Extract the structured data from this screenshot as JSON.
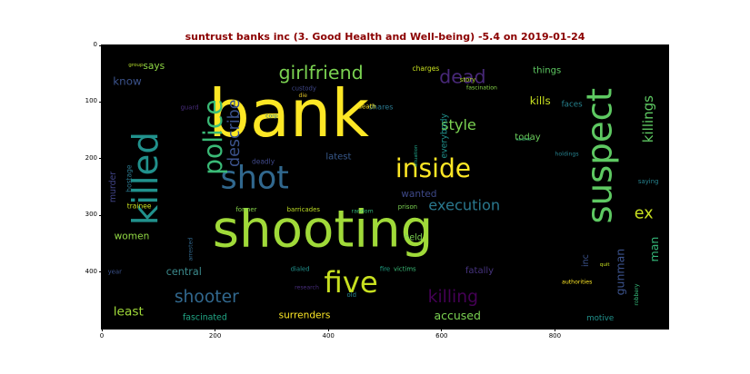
{
  "chart_data": {
    "type": "wordcloud",
    "title": "suntrust banks inc (3. Good Health and Well-being) -5.4 on 2019-01-24",
    "title_color": "#8b0000",
    "background": "#000000",
    "xlim": [
      0,
      1000
    ],
    "ylim": [
      500,
      0
    ],
    "x_ticks": [
      0,
      200,
      400,
      600,
      800
    ],
    "y_ticks": [
      0,
      100,
      200,
      300,
      400
    ],
    "words": [
      {
        "text": "bank",
        "x": 330,
        "y": 120,
        "size": 115,
        "rot": 0,
        "color": "#fde725"
      },
      {
        "text": "shooting",
        "x": 390,
        "y": 325,
        "size": 90,
        "rot": 0,
        "color": "#a0da39"
      },
      {
        "text": "suspect",
        "x": 880,
        "y": 195,
        "size": 62,
        "rot": -90,
        "color": "#5ec962"
      },
      {
        "text": "killed",
        "x": 78,
        "y": 235,
        "size": 62,
        "rot": -90,
        "color": "#21918c"
      },
      {
        "text": "five",
        "x": 440,
        "y": 418,
        "size": 52,
        "rot": 0,
        "color": "#c8e020"
      },
      {
        "text": "shot",
        "x": 270,
        "y": 235,
        "size": 56,
        "rot": 0,
        "color": "#31688e"
      },
      {
        "text": "inside",
        "x": 585,
        "y": 217,
        "size": 45,
        "rot": 0,
        "color": "#fde725"
      },
      {
        "text": "police",
        "x": 197,
        "y": 162,
        "size": 45,
        "rot": -90,
        "color": "#3aba76"
      },
      {
        "text": "girlfriend",
        "x": 387,
        "y": 48,
        "size": 33,
        "rot": 0,
        "color": "#7ad151"
      },
      {
        "text": "dead",
        "x": 637,
        "y": 55,
        "size": 33,
        "rot": 0,
        "color": "#482878"
      },
      {
        "text": "describe",
        "x": 234,
        "y": 155,
        "size": 28,
        "rot": -90,
        "color": "#3b528b"
      },
      {
        "text": "style",
        "x": 630,
        "y": 140,
        "size": 26,
        "rot": 0,
        "color": "#7ad151"
      },
      {
        "text": "killings",
        "x": 965,
        "y": 130,
        "size": 24,
        "rot": -90,
        "color": "#5ec962"
      },
      {
        "text": "execution",
        "x": 640,
        "y": 282,
        "size": 26,
        "rot": 0,
        "color": "#2a788e"
      },
      {
        "text": "shooter",
        "x": 185,
        "y": 445,
        "size": 30,
        "rot": 0,
        "color": "#31688e"
      },
      {
        "text": "killing",
        "x": 620,
        "y": 445,
        "size": 30,
        "rot": 0,
        "color": "#440154"
      },
      {
        "text": "central",
        "x": 145,
        "y": 400,
        "size": 18,
        "rot": 0,
        "color": "#3b8a8c"
      },
      {
        "text": "least",
        "x": 47,
        "y": 470,
        "size": 22,
        "rot": 0,
        "color": "#a0da39"
      },
      {
        "text": "fascinated",
        "x": 182,
        "y": 481,
        "size": 15,
        "rot": 0,
        "color": "#21a685"
      },
      {
        "text": "surrenders",
        "x": 358,
        "y": 477,
        "size": 17,
        "rot": 0,
        "color": "#fde725"
      },
      {
        "text": "accused",
        "x": 628,
        "y": 477,
        "size": 20,
        "rot": 0,
        "color": "#7ad151"
      },
      {
        "text": "know",
        "x": 45,
        "y": 63,
        "size": 19,
        "rot": 0,
        "color": "#3b528b"
      },
      {
        "text": "says",
        "x": 92,
        "y": 37,
        "size": 17,
        "rot": 0,
        "color": "#8fd744"
      },
      {
        "text": "things",
        "x": 786,
        "y": 45,
        "size": 16,
        "rot": 0,
        "color": "#5ec962"
      },
      {
        "text": "charges",
        "x": 572,
        "y": 41,
        "size": 12,
        "rot": 0,
        "color": "#c8e020"
      },
      {
        "text": "story",
        "x": 646,
        "y": 61,
        "size": 11,
        "rot": 0,
        "color": "#b5de2b"
      },
      {
        "text": "kills",
        "x": 774,
        "y": 98,
        "size": 19,
        "rot": 0,
        "color": "#c8e020"
      },
      {
        "text": "faces",
        "x": 830,
        "y": 105,
        "size": 14,
        "rot": 0,
        "color": "#26828e"
      },
      {
        "text": "fascination",
        "x": 671,
        "y": 75,
        "size": 10,
        "rot": 0,
        "color": "#86d549"
      },
      {
        "text": "shares",
        "x": 493,
        "y": 108,
        "size": 13,
        "rot": 0,
        "color": "#2a788e"
      },
      {
        "text": "everybody",
        "x": 605,
        "y": 160,
        "size": 15,
        "rot": -90,
        "color": "#21918c"
      },
      {
        "text": "today",
        "x": 752,
        "y": 163,
        "size": 16,
        "rot": 0,
        "color": "#6ccd5a"
      },
      {
        "text": "latest",
        "x": 418,
        "y": 197,
        "size": 16,
        "rot": 0,
        "color": "#38598c"
      },
      {
        "text": "scene",
        "x": 745,
        "y": 167,
        "size": 9,
        "rot": 0,
        "color": "#3dbc74"
      },
      {
        "text": "holdings",
        "x": 821,
        "y": 192,
        "size": 10,
        "rot": 0,
        "color": "#26828e"
      },
      {
        "text": "custody",
        "x": 357,
        "y": 76,
        "size": 11,
        "rot": 0,
        "color": "#3f4788"
      },
      {
        "text": "group",
        "x": 60,
        "y": 35,
        "size": 9,
        "rot": 0,
        "color": "#b5de2b"
      },
      {
        "text": "guard",
        "x": 155,
        "y": 110,
        "size": 11,
        "rot": 0,
        "color": "#472c7a"
      },
      {
        "text": "die",
        "x": 355,
        "y": 89,
        "size": 10,
        "rot": 0,
        "color": "#ddc127"
      },
      {
        "text": "death",
        "x": 468,
        "y": 108,
        "size": 11,
        "rot": 0,
        "color": "#fde725"
      },
      {
        "text": "corp",
        "x": 300,
        "y": 125,
        "size": 10,
        "rot": 0,
        "color": "#2a768e"
      },
      {
        "text": "situation",
        "x": 555,
        "y": 195,
        "size": 9,
        "rot": -90,
        "color": "#1fa187"
      },
      {
        "text": "deadly",
        "x": 285,
        "y": 205,
        "size": 12,
        "rot": 0,
        "color": "#3f4889"
      },
      {
        "text": "murder",
        "x": 20,
        "y": 250,
        "size": 15,
        "rot": -90,
        "color": "#414487"
      },
      {
        "text": "hostage",
        "x": 48,
        "y": 235,
        "size": 12,
        "rot": -90,
        "color": "#2a788e"
      },
      {
        "text": "trainee",
        "x": 66,
        "y": 284,
        "size": 12,
        "rot": 0,
        "color": "#c8e020"
      },
      {
        "text": "former",
        "x": 255,
        "y": 290,
        "size": 11,
        "rot": 0,
        "color": "#86d549"
      },
      {
        "text": "barricades",
        "x": 356,
        "y": 290,
        "size": 11,
        "rot": 0,
        "color": "#c0df25"
      },
      {
        "text": "random",
        "x": 460,
        "y": 293,
        "size": 10,
        "rot": 0,
        "color": "#35b779"
      },
      {
        "text": "prison",
        "x": 540,
        "y": 285,
        "size": 11,
        "rot": 0,
        "color": "#7ad151"
      },
      {
        "text": "wanted",
        "x": 560,
        "y": 263,
        "size": 17,
        "rot": 0,
        "color": "#3e4989"
      },
      {
        "text": "saying",
        "x": 965,
        "y": 240,
        "size": 11,
        "rot": 0,
        "color": "#26828e"
      },
      {
        "text": "ex",
        "x": 957,
        "y": 297,
        "size": 28,
        "rot": 0,
        "color": "#c8e020"
      },
      {
        "text": "man",
        "x": 975,
        "y": 360,
        "size": 20,
        "rot": -90,
        "color": "#35b779"
      },
      {
        "text": "women",
        "x": 53,
        "y": 337,
        "size": 17,
        "rot": 0,
        "color": "#90d743"
      },
      {
        "text": "held",
        "x": 550,
        "y": 340,
        "size": 15,
        "rot": 0,
        "color": "#7ad151"
      },
      {
        "text": "inc",
        "x": 855,
        "y": 380,
        "size": 15,
        "rot": -90,
        "color": "#3b528b"
      },
      {
        "text": "gunman",
        "x": 915,
        "y": 400,
        "size": 20,
        "rot": -90,
        "color": "#3b528b"
      },
      {
        "text": "arrested",
        "x": 157,
        "y": 360,
        "size": 10,
        "rot": -90,
        "color": "#31688e"
      },
      {
        "text": "year",
        "x": 23,
        "y": 400,
        "size": 11,
        "rot": 0,
        "color": "#3b528b"
      },
      {
        "text": "dialed",
        "x": 350,
        "y": 395,
        "size": 11,
        "rot": 0,
        "color": "#21918c"
      },
      {
        "text": "fire",
        "x": 500,
        "y": 395,
        "size": 11,
        "rot": 0,
        "color": "#20a386"
      },
      {
        "text": "victims",
        "x": 535,
        "y": 395,
        "size": 11,
        "rot": 0,
        "color": "#3aba76"
      },
      {
        "text": "fatally",
        "x": 667,
        "y": 398,
        "size": 16,
        "rot": 0,
        "color": "#46337e"
      },
      {
        "text": "quit",
        "x": 888,
        "y": 388,
        "size": 9,
        "rot": 0,
        "color": "#c8e020"
      },
      {
        "text": "authorities",
        "x": 839,
        "y": 418,
        "size": 10,
        "rot": 0,
        "color": "#fde725"
      },
      {
        "text": "robbery",
        "x": 945,
        "y": 440,
        "size": 10,
        "rot": -90,
        "color": "#35b779"
      },
      {
        "text": "research",
        "x": 362,
        "y": 428,
        "size": 10,
        "rot": 0,
        "color": "#472d7b"
      },
      {
        "text": "old",
        "x": 441,
        "y": 441,
        "size": 11,
        "rot": 0,
        "color": "#26828e"
      },
      {
        "text": "motive",
        "x": 880,
        "y": 482,
        "size": 14,
        "rot": 0,
        "color": "#21918c"
      }
    ]
  }
}
